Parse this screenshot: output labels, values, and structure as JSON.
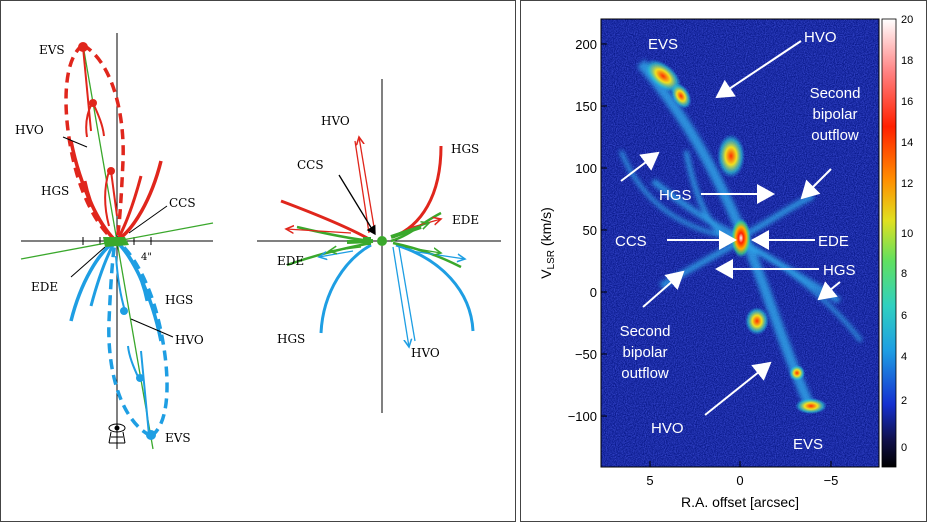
{
  "diagram_a": {
    "labels": {
      "evs_top": "EVS",
      "hvo_top": "HVO",
      "hgs_top": "HGS",
      "ccs": "CCS",
      "ede": "EDE",
      "hgs_bottom": "HGS",
      "hvo_bottom": "HVO",
      "evs_bottom": "EVS",
      "scale": "4\""
    }
  },
  "diagram_b": {
    "labels": {
      "hvo_top": "HVO",
      "ccs": "CCS",
      "hgs_top": "HGS",
      "ede_right": "EDE",
      "ede_left": "EDE",
      "hgs_bottom": "HGS",
      "hvo_bottom": "HVO"
    }
  },
  "pv_map": {
    "xlabel": "R.A. offset [arcsec]",
    "ylabel_main": "V",
    "ylabel_sub": "LSR",
    "ylabel_unit": " (km/s)",
    "x_ticks": [
      "5",
      "0",
      "−5"
    ],
    "y_ticks": [
      "200",
      "150",
      "100",
      "50",
      "0",
      "−50",
      "−100"
    ],
    "colorbar_ticks": [
      "20",
      "18",
      "16",
      "14",
      "12",
      "10",
      "8",
      "6",
      "4",
      "2",
      "0"
    ],
    "annotations": {
      "evs_top": "EVS",
      "hvo_top": "HVO",
      "second_1": "Second",
      "bipolar_1": "bipolar",
      "outflow_1": "outflow",
      "hgs_left": "HGS",
      "ccs": "CCS",
      "ede": "EDE",
      "hgs_right": "HGS",
      "second_2": "Second",
      "bipolar_2": "bipolar",
      "outflow_2": "outflow",
      "hvo_bottom": "HVO",
      "evs_bottom": "EVS"
    }
  },
  "colors": {
    "red": "#e0261c",
    "blue": "#1e9ee3",
    "green": "#3aa82c",
    "black": "#000000",
    "white": "#ffffff"
  }
}
